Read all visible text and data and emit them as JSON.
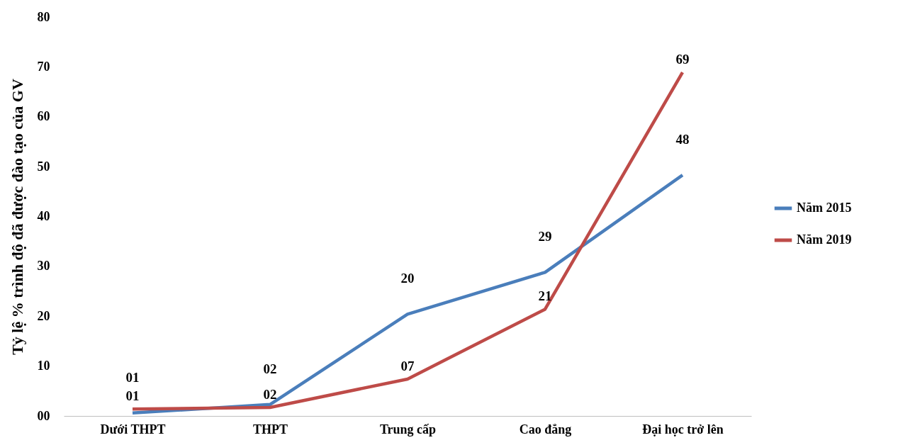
{
  "chart_data": {
    "type": "line",
    "ylabel": "Tỷ lệ % trình độ đã được đào tạo của GV",
    "categories": [
      "Dưới THPT",
      "THPT",
      "Trung cấp",
      "Cao đẳng",
      "Đại học trở lên"
    ],
    "series": [
      {
        "name": "Năm 2015",
        "color": "#4a7ebb",
        "values": [
          0.6,
          2.3,
          20.4,
          28.8,
          48.3
        ],
        "value_labels": [
          "01",
          "02",
          "20",
          "29",
          "48"
        ]
      },
      {
        "name": "Năm 2019",
        "color": "#be4b48",
        "values": [
          1.4,
          1.7,
          7.4,
          21.4,
          68.9
        ],
        "value_labels": [
          "01",
          "02",
          "07",
          "21",
          "69"
        ]
      }
    ],
    "ylim": [
      0,
      80
    ],
    "yticks": [
      {
        "value": 0,
        "label": "00"
      },
      10,
      20,
      30,
      40,
      50,
      60,
      70,
      80
    ],
    "grid": false,
    "legend": "right",
    "marker": "none",
    "line_style": "solid"
  }
}
